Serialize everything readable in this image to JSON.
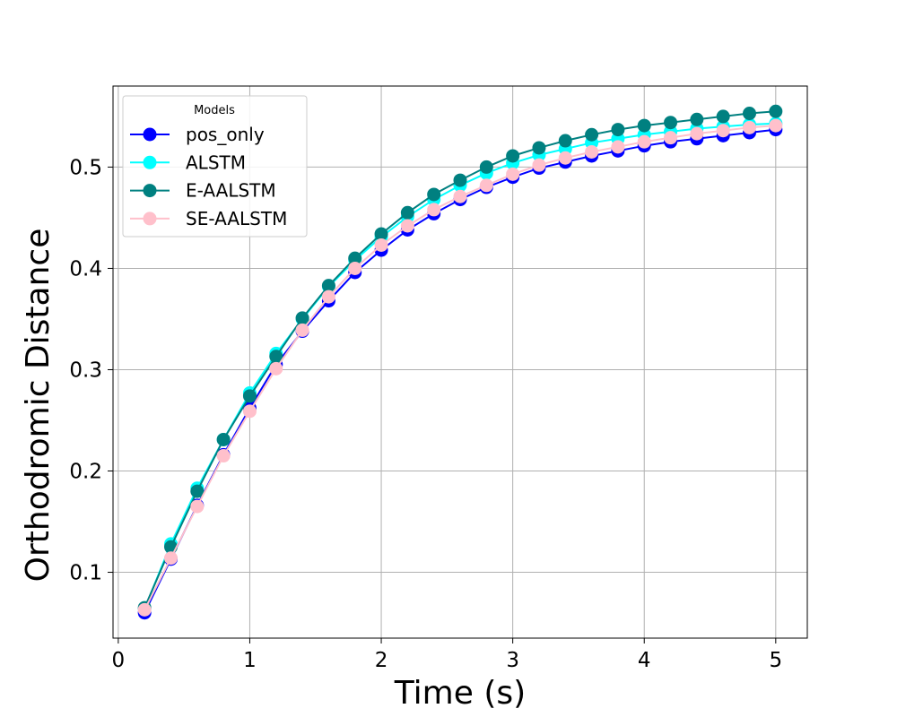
{
  "chart_data": {
    "type": "line",
    "xlabel": "Time (s)",
    "ylabel": "Orthodromic Distance",
    "xlim": [
      -0.04,
      5.24
    ],
    "ylim": [
      0.035,
      0.58
    ],
    "xticks": [
      0,
      1,
      2,
      3,
      4,
      5
    ],
    "yticks": [
      0.1,
      0.2,
      0.3,
      0.4,
      0.5
    ],
    "xtick_labels": [
      "0",
      "1",
      "2",
      "3",
      "4",
      "5"
    ],
    "ytick_labels": [
      "0.1",
      "0.2",
      "0.3",
      "0.4",
      "0.5"
    ],
    "grid": true,
    "legend": {
      "title": "Models",
      "placement": "top-left"
    },
    "x": [
      0.2,
      0.4,
      0.6,
      0.8,
      1.0,
      1.2,
      1.4,
      1.6,
      1.8,
      2.0,
      2.2,
      2.4,
      2.6,
      2.8,
      3.0,
      3.2,
      3.4,
      3.6,
      3.8,
      4.0,
      4.2,
      4.4,
      4.6,
      4.8,
      5.0
    ],
    "series": [
      {
        "name": "pos_only",
        "color": "#0000ff",
        "values": [
          0.06,
          0.113,
          0.166,
          0.216,
          0.262,
          0.305,
          0.338,
          0.368,
          0.396,
          0.418,
          0.438,
          0.454,
          0.468,
          0.48,
          0.49,
          0.499,
          0.505,
          0.511,
          0.516,
          0.521,
          0.525,
          0.528,
          0.531,
          0.534,
          0.537
        ]
      },
      {
        "name": "ALSTM",
        "color": "#00ffff",
        "values": [
          0.064,
          0.128,
          0.183,
          0.231,
          0.277,
          0.316,
          0.35,
          0.382,
          0.408,
          0.431,
          0.451,
          0.468,
          0.482,
          0.494,
          0.504,
          0.512,
          0.518,
          0.524,
          0.528,
          0.532,
          0.535,
          0.538,
          0.54,
          0.542,
          0.543
        ]
      },
      {
        "name": "E-AALSTM",
        "color": "#008080",
        "values": [
          0.065,
          0.125,
          0.18,
          0.231,
          0.274,
          0.313,
          0.351,
          0.383,
          0.41,
          0.434,
          0.455,
          0.473,
          0.487,
          0.5,
          0.511,
          0.519,
          0.526,
          0.532,
          0.537,
          0.541,
          0.544,
          0.547,
          0.55,
          0.553,
          0.555
        ]
      },
      {
        "name": "SE-AALSTM",
        "color": "#ffc0cb",
        "values": [
          0.063,
          0.114,
          0.165,
          0.215,
          0.259,
          0.301,
          0.339,
          0.372,
          0.4,
          0.423,
          0.442,
          0.458,
          0.471,
          0.482,
          0.493,
          0.502,
          0.509,
          0.515,
          0.52,
          0.525,
          0.529,
          0.533,
          0.536,
          0.539,
          0.541
        ]
      }
    ]
  }
}
